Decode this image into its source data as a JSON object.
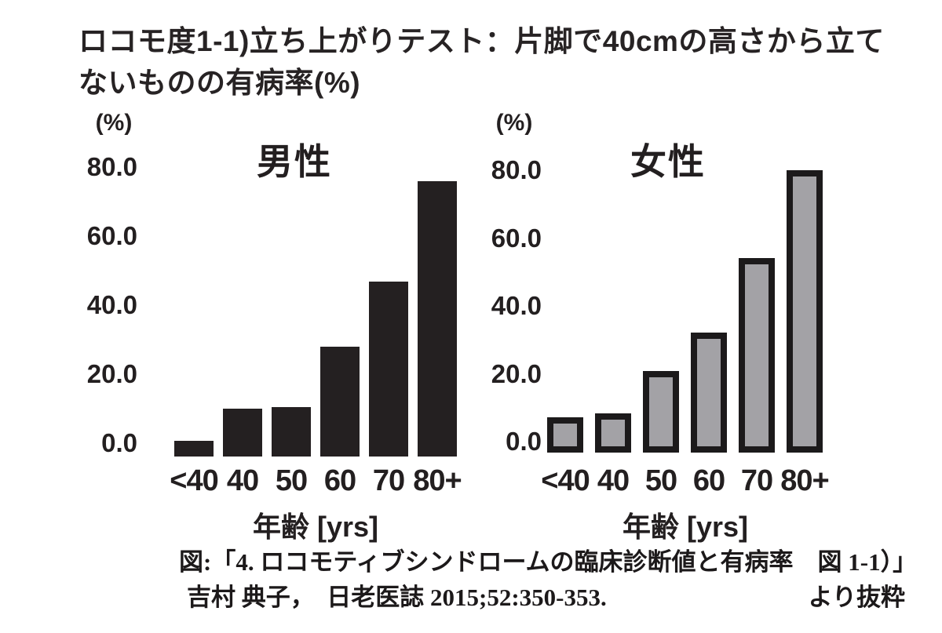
{
  "page": {
    "title_line1": "ロコモ度1-1)立ち上がりテスト：片脚で40cmの高さから立て",
    "title_line2": "ないものの有病率(%)",
    "caption_line1": "図:「4. ロコモティブシンドロームの臨床診断値と有病率　図 1-1）」",
    "caption_line2_left": "吉村 典子，　日老医誌 2015;52:350-353.",
    "caption_line2_right": "より抜粋"
  },
  "chart_data": [
    {
      "id": "male",
      "type": "bar",
      "title": "男性",
      "unit_label": "(%)",
      "xlabel": "年齢 [yrs]",
      "categories": [
        "<40",
        "40",
        "50",
        "60",
        "70",
        "80+"
      ],
      "values": [
        4.5,
        13.5,
        14.0,
        31.0,
        49.5,
        78.0
      ],
      "yticks": [
        "80.0",
        "60.0",
        "40.0",
        "20.0",
        "0.0"
      ],
      "ylim": [
        0,
        80
      ],
      "grid": "off",
      "legend": "none",
      "bar_fill": "#242021",
      "bar_border": "#242021"
    },
    {
      "id": "female",
      "type": "bar",
      "title": "女性",
      "unit_label": "(%)",
      "xlabel": "年齢 [yrs]",
      "categories": [
        "<40",
        "40",
        "50",
        "60",
        "70",
        "80+"
      ],
      "values": [
        10.0,
        11.0,
        23.0,
        34.0,
        55.0,
        80.0
      ],
      "yticks": [
        "80.0",
        "60.0",
        "40.0",
        "20.0",
        "0.0"
      ],
      "ylim": [
        0,
        80
      ],
      "grid": "off",
      "legend": "none",
      "bar_fill": "#a3a2a6",
      "bar_border": "#1c1a1b"
    }
  ]
}
